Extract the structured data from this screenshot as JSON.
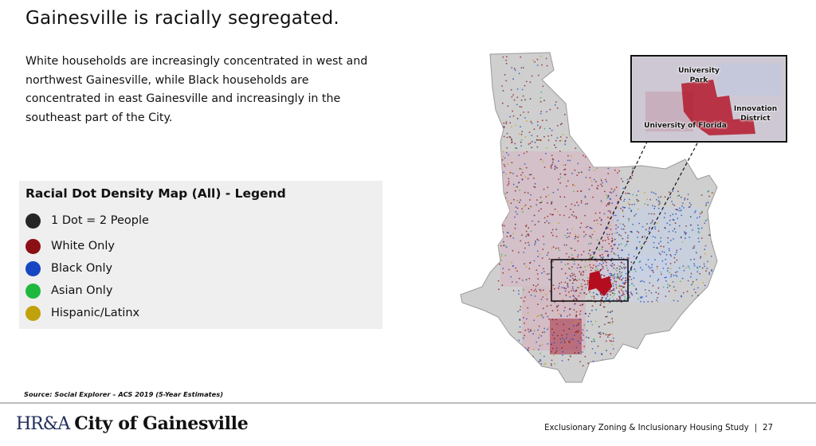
{
  "slide": {
    "title": "Gainesville is racially segregated.",
    "intro": "White households are increasingly concentrated in west and northwest Gainesville, while Black households are concentrated in east Gainesville and increasingly in the southeast part of the City."
  },
  "legend": {
    "title": "Racial Dot Density Map (All) - Legend",
    "items": [
      {
        "label": "1 Dot = 2 People",
        "color": "#262626"
      },
      {
        "label": "White Only",
        "color": "#8b0f14"
      },
      {
        "label": "Black Only",
        "color": "#1646c2"
      },
      {
        "label": "Asian Only",
        "color": "#1fb83f"
      },
      {
        "label": "Hispanic/Latinx",
        "color": "#c1a10c"
      }
    ]
  },
  "map": {
    "inset_labels": {
      "university_park": "University Park",
      "university_of_florida": "University of Florida",
      "innovation_district": "Innovation District"
    }
  },
  "source": "Source: Social Explorer – ACS 2019 (5-Year Estimates)",
  "footer": {
    "logo_mark": "HR&A",
    "logo_name": "City of Gainesville",
    "study": "Exclusionary Zoning & Inclusionary Housing Study",
    "separator": "|",
    "page_number": "27"
  }
}
